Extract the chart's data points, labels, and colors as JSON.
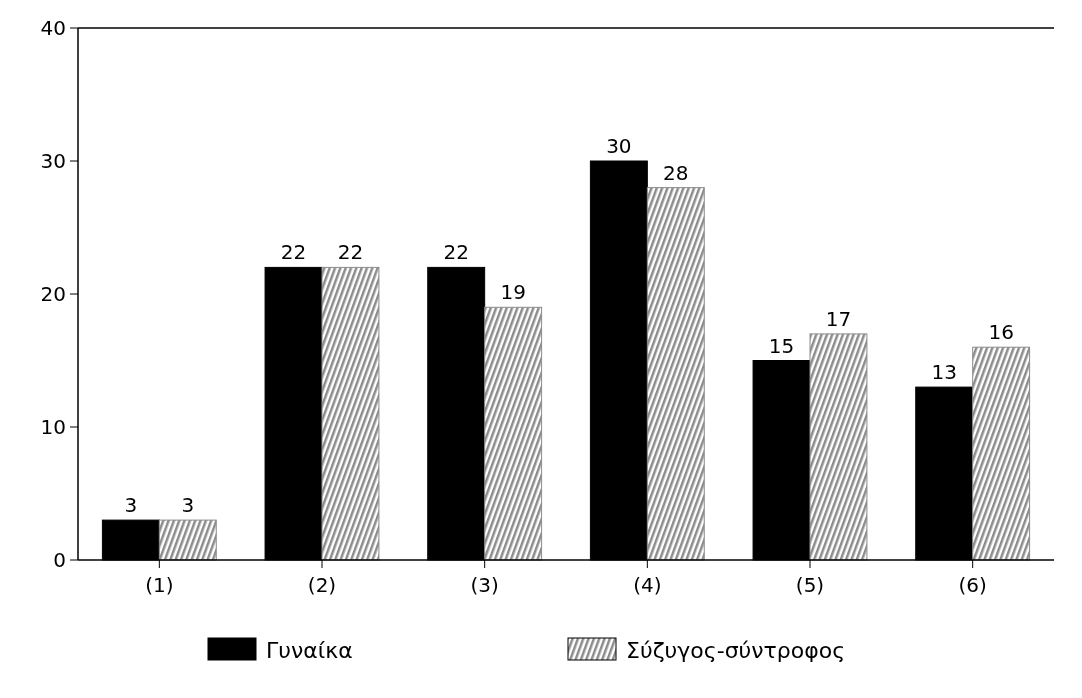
{
  "chart_data": {
    "type": "bar",
    "categories": [
      "(1)",
      "(2)",
      "(3)",
      "(4)",
      "(5)",
      "(6)"
    ],
    "series": [
      {
        "name": "Γυναίκα",
        "color": "#000000",
        "values": [
          3,
          22,
          22,
          30,
          15,
          13
        ]
      },
      {
        "name": "Σύζυγος-σύντροφος",
        "color": "#8c8c8c",
        "values": [
          3,
          22,
          19,
          28,
          17,
          16
        ]
      }
    ],
    "ylim": [
      0,
      40
    ],
    "yticks": [
      0,
      10,
      20,
      30,
      40
    ],
    "data_labels": true,
    "grid": false,
    "legend": "bottom"
  }
}
